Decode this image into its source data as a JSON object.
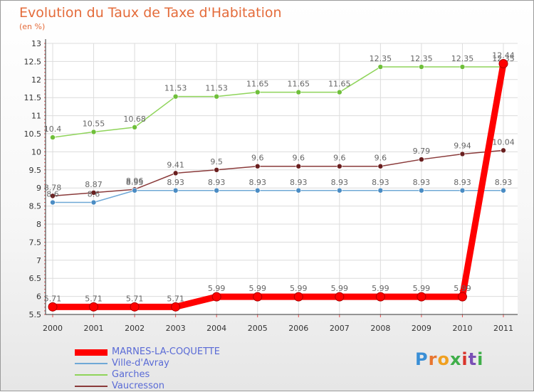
{
  "header": {
    "title": "Evolution du Taux de Taxe d'Habitation",
    "unit": "(en %)"
  },
  "brand": {
    "letters": [
      "P",
      "r",
      "o",
      "x",
      "i",
      "t",
      "i"
    ],
    "colors": [
      "#3a8fd6",
      "#e8752f",
      "#f0a020",
      "#3fae49",
      "#d9342b",
      "#7a4fb5",
      "#3fae49"
    ]
  },
  "chart_data": {
    "type": "line",
    "x": [
      "2000",
      "2001",
      "2002",
      "2003",
      "2004",
      "2005",
      "2006",
      "2007",
      "2008",
      "2009",
      "2010",
      "2011"
    ],
    "ylim": [
      5.5,
      13
    ],
    "yticks": [
      "5.5",
      "6",
      "6.5",
      "7",
      "7.5",
      "8",
      "8.5",
      "9",
      "9.5",
      "10",
      "10.5",
      "11",
      "11.5",
      "12",
      "12.5",
      "13"
    ],
    "grid": true,
    "series": [
      {
        "name": "Garches",
        "color": "#8fd45a",
        "marker": "#6fbf3a",
        "values": [
          10.4,
          10.55,
          10.68,
          11.53,
          11.53,
          11.65,
          11.65,
          11.65,
          12.35,
          12.35,
          12.35,
          12.35
        ],
        "labels": [
          "10.4",
          "10.55",
          "10.68",
          "11.53",
          "11.53",
          "11.65",
          "11.65",
          "11.65",
          "12.35",
          "12.35",
          "12.35",
          "12.35"
        ]
      },
      {
        "name": "Vaucresson",
        "color": "#8a3a3a",
        "marker": "#6a1f1f",
        "values": [
          8.78,
          8.87,
          8.96,
          9.41,
          9.5,
          9.6,
          9.6,
          9.6,
          9.6,
          9.79,
          9.94,
          10.04
        ],
        "labels": [
          "8.78",
          "8.87",
          "8.96",
          "9.41",
          "9.5",
          "9.6",
          "9.6",
          "9.6",
          "9.6",
          "9.79",
          "9.94",
          "10.04"
        ]
      },
      {
        "name": "Ville-d'Avray",
        "color": "#6fa8d6",
        "marker": "#4a8cc4",
        "values": [
          8.6,
          8.6,
          8.93,
          8.93,
          8.93,
          8.93,
          8.93,
          8.93,
          8.93,
          8.93,
          8.93,
          8.93
        ],
        "labels": [
          "8.6",
          "8.6",
          "8.93",
          "8.93",
          "8.93",
          "8.93",
          "8.93",
          "8.93",
          "8.93",
          "8.93",
          "8.93",
          "8.93"
        ]
      },
      {
        "name": "MARNES-LA-COQUETTE",
        "color": "#ff0000",
        "marker": "#ff0000",
        "values": [
          5.71,
          5.71,
          5.71,
          5.71,
          5.99,
          5.99,
          5.99,
          5.99,
          5.99,
          5.99,
          5.99,
          12.44
        ],
        "labels": [
          "5.71",
          "5.71",
          "5.71",
          "5.71",
          "5.99",
          "5.99",
          "5.99",
          "5.99",
          "5.99",
          "5.99",
          "5.99",
          "12.44"
        ]
      }
    ],
    "legend": [
      {
        "name": "MARNES-LA-COQUETTE",
        "color": "#ff0000",
        "text_color": "#5a6bd6"
      },
      {
        "name": "Ville-d'Avray",
        "color": "#6fa8d6",
        "text_color": "#5a6bd6"
      },
      {
        "name": "Garches",
        "color": "#8fd45a",
        "text_color": "#5a6bd6"
      },
      {
        "name": "Vaucresson",
        "color": "#8a3a3a",
        "text_color": "#5a6bd6"
      }
    ]
  }
}
